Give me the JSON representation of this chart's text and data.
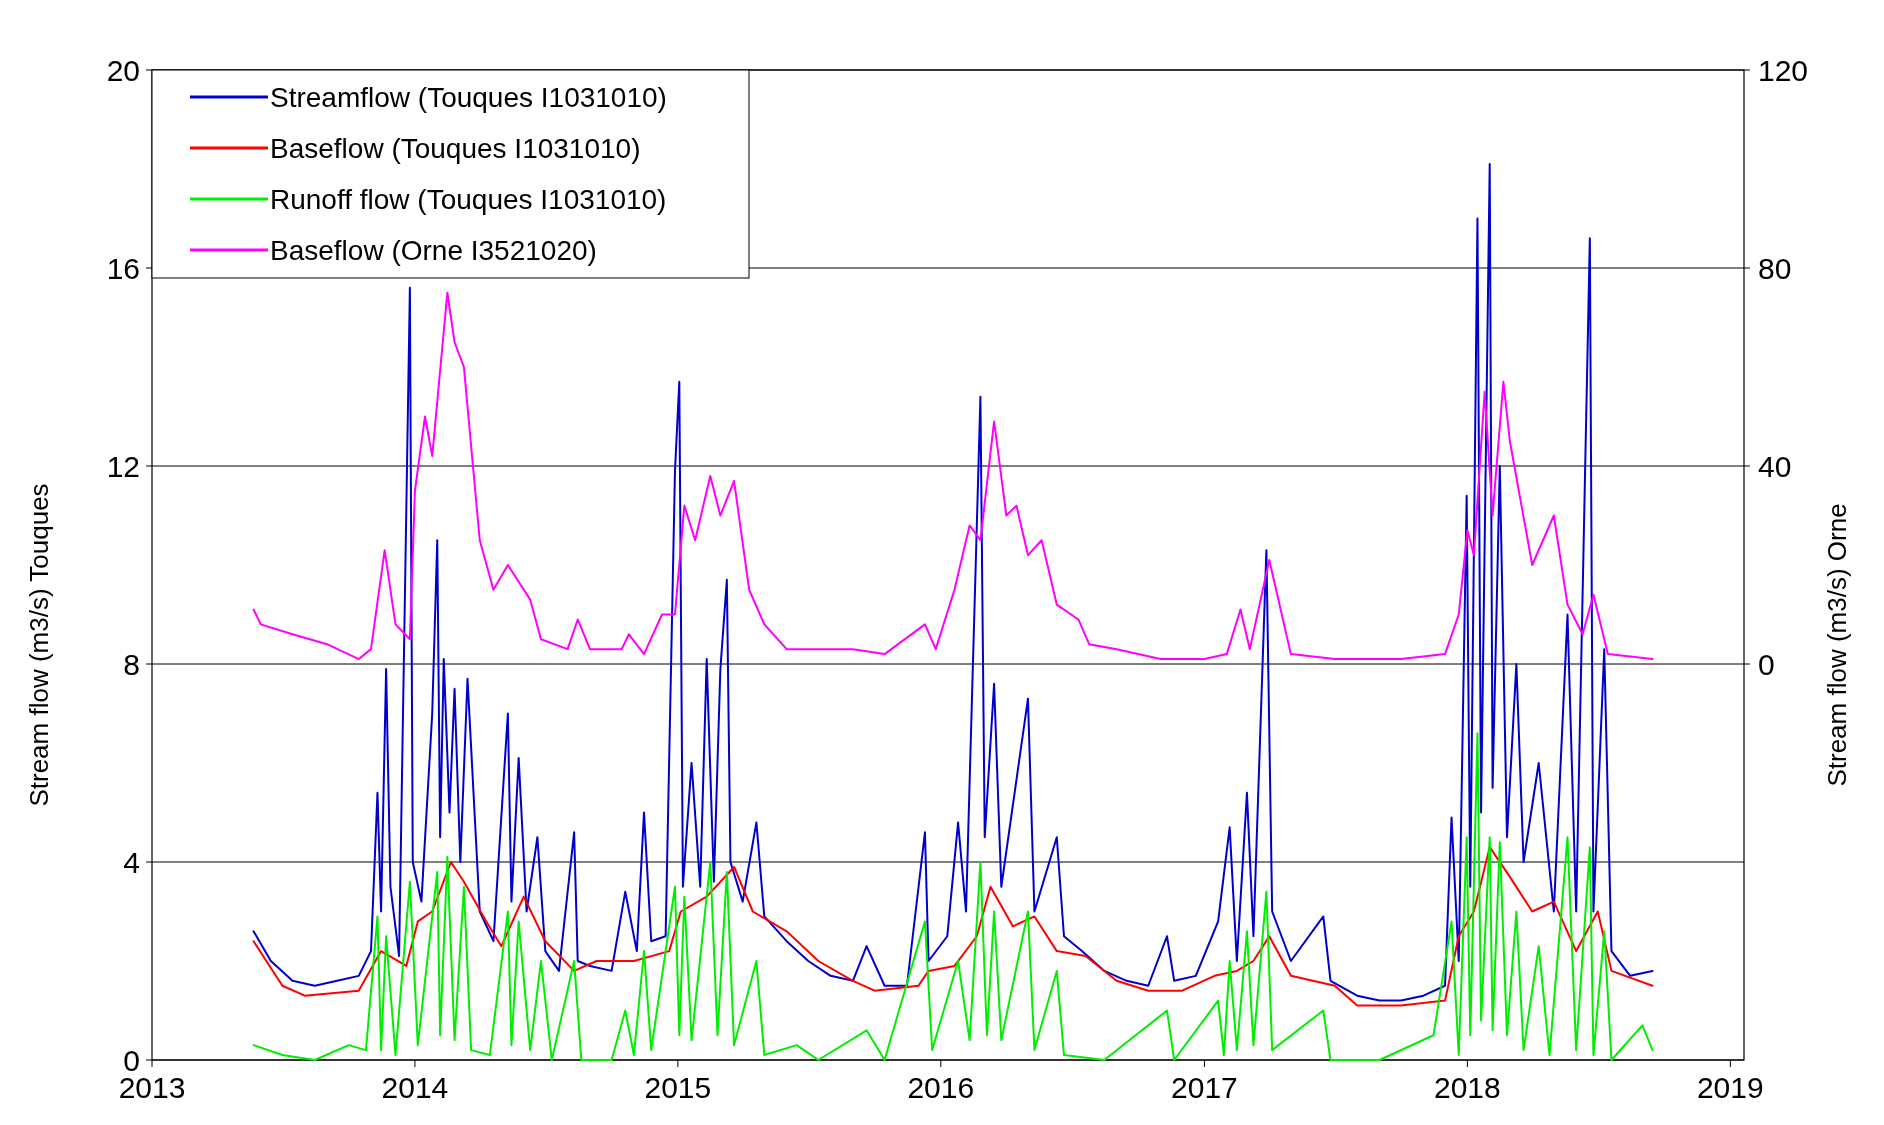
{
  "chart_data": {
    "type": "line",
    "ylabel": "Stream flow (m3/s) Touques",
    "y2label": "Stream flow (m3/s) Orne",
    "xlim": [
      "2013",
      "2019-01-20"
    ],
    "xticks": [
      {
        "value": "2013",
        "label": "2013"
      },
      {
        "value": "2014",
        "label": "2014"
      },
      {
        "value": "2015",
        "label": "2015"
      },
      {
        "value": "2016",
        "label": "2016"
      },
      {
        "value": "2017",
        "label": "2017"
      },
      {
        "value": "2018",
        "label": "2018"
      },
      {
        "value": "2019",
        "label": "2019"
      }
    ],
    "ylim": [
      0,
      20
    ],
    "yticks": [
      0,
      4,
      8,
      12,
      16,
      20
    ],
    "y2lim": [
      -80,
      120
    ],
    "y2ticks": [
      0,
      40,
      80,
      120
    ],
    "grid": "y",
    "legend": "top left",
    "series": [
      {
        "name": "Streamflow (Touques I1031010)",
        "color": "#0000cc",
        "x": [
          "2013-05-22",
          "2013-06-15",
          "2013-07-15",
          "2013-08-15",
          "2013-09-15",
          "2013-10-15",
          "2013-11-01",
          "2013-11-10",
          "2013-11-15",
          "2013-11-22",
          "2013-11-28",
          "2013-12-10",
          "2013-12-25",
          "2013-12-29",
          "2014-01-10",
          "2014-01-25",
          "2014-02-01",
          "2014-02-05",
          "2014-02-10",
          "2014-02-18",
          "2014-02-25",
          "2014-03-05",
          "2014-03-15",
          "2014-04-01",
          "2014-04-20",
          "2014-05-10",
          "2014-05-15",
          "2014-05-25",
          "2014-06-05",
          "2014-06-20",
          "2014-07-01",
          "2014-07-20",
          "2014-08-10",
          "2014-08-15",
          "2014-09-01",
          "2014-10-01",
          "2014-10-20",
          "2014-11-05",
          "2014-11-15",
          "2014-11-25",
          "2014-12-15",
          "2014-12-28",
          "2015-01-03",
          "2015-01-08",
          "2015-01-20",
          "2015-02-01",
          "2015-02-10",
          "2015-02-20",
          "2015-03-01",
          "2015-03-10",
          "2015-03-15",
          "2015-04-01",
          "2015-04-20",
          "2015-05-01",
          "2015-06-01",
          "2015-07-01",
          "2015-08-01",
          "2015-09-01",
          "2015-09-20",
          "2015-10-15",
          "2015-11-15",
          "2015-12-10",
          "2015-12-15",
          "2016-01-10",
          "2016-01-25",
          "2016-02-05",
          "2016-02-25",
          "2016-03-02",
          "2016-03-15",
          "2016-03-25",
          "2016-05-01",
          "2016-05-10",
          "2016-06-10",
          "2016-06-20",
          "2016-07-15",
          "2016-08-15",
          "2016-09-15",
          "2016-10-15",
          "2016-11-10",
          "2016-11-20",
          "2016-12-20",
          "2017-01-20",
          "2017-02-05",
          "2017-02-15",
          "2017-03-01",
          "2017-03-10",
          "2017-03-28",
          "2017-04-05",
          "2017-05-01",
          "2017-06-15",
          "2017-06-25",
          "2017-08-01",
          "2017-09-01",
          "2017-10-01",
          "2017-11-01",
          "2017-12-01",
          "2017-12-10",
          "2017-12-20",
          "2017-12-31",
          "2018-01-05",
          "2018-01-15",
          "2018-01-20",
          "2018-02-01",
          "2018-02-05",
          "2018-02-15",
          "2018-02-25",
          "2018-03-10",
          "2018-03-20",
          "2018-04-10",
          "2018-05-01",
          "2018-05-20",
          "2018-06-01",
          "2018-06-20",
          "2018-06-25",
          "2018-07-10",
          "2018-07-20",
          "2018-08-15",
          "2018-09-15"
        ],
        "values": [
          2.6,
          2.0,
          1.6,
          1.5,
          1.6,
          1.7,
          2.2,
          5.4,
          3.0,
          7.9,
          3.5,
          2.1,
          15.6,
          4.0,
          3.2,
          7.0,
          10.5,
          4.5,
          8.1,
          5.0,
          7.5,
          4.0,
          7.7,
          3.0,
          2.4,
          7.0,
          3.2,
          6.1,
          3.0,
          4.5,
          2.2,
          1.8,
          4.6,
          2.0,
          1.9,
          1.8,
          3.4,
          2.2,
          5.0,
          2.4,
          2.5,
          11.9,
          13.7,
          3.5,
          6.0,
          3.5,
          8.1,
          3.6,
          7.9,
          9.7,
          4.0,
          3.2,
          4.8,
          2.9,
          2.4,
          2.0,
          1.7,
          1.6,
          2.3,
          1.5,
          1.5,
          4.6,
          2.0,
          2.5,
          4.8,
          3.0,
          13.4,
          4.5,
          7.6,
          3.5,
          7.3,
          3.0,
          4.5,
          2.5,
          2.2,
          1.8,
          1.6,
          1.5,
          2.5,
          1.6,
          1.7,
          2.8,
          4.7,
          2.0,
          5.4,
          2.5,
          10.3,
          3.0,
          2.0,
          2.9,
          1.6,
          1.3,
          1.2,
          1.2,
          1.3,
          1.5,
          4.9,
          2.0,
          11.4,
          3.5,
          17.0,
          5.0,
          18.1,
          5.5,
          12.0,
          4.5,
          8.0,
          4.0,
          6.0,
          3.0,
          9.0,
          3.0,
          16.6,
          3.0,
          8.3,
          2.2,
          1.7,
          1.8
        ]
      },
      {
        "name": "Baseflow (Touques I1031010)",
        "color": "#ff0000",
        "x": [
          "2013-05-22",
          "2013-07-01",
          "2013-08-01",
          "2013-10-15",
          "2013-11-15",
          "2013-12-20",
          "2014-01-05",
          "2014-01-25",
          "2014-02-20",
          "2014-03-10",
          "2014-04-10",
          "2014-05-01",
          "2014-06-01",
          "2014-07-01",
          "2014-08-10",
          "2014-09-10",
          "2014-11-01",
          "2014-12-20",
          "2015-01-05",
          "2015-02-10",
          "2015-03-20",
          "2015-04-15",
          "2015-06-01",
          "2015-07-15",
          "2015-09-01",
          "2015-10-01",
          "2015-12-01",
          "2015-12-15",
          "2016-01-20",
          "2016-02-20",
          "2016-03-10",
          "2016-04-10",
          "2016-05-10",
          "2016-06-10",
          "2016-07-20",
          "2016-09-01",
          "2016-10-15",
          "2016-12-01",
          "2017-01-15",
          "2017-02-15",
          "2017-03-10",
          "2017-04-01",
          "2017-05-01",
          "2017-07-01",
          "2017-08-01",
          "2017-10-01",
          "2017-12-01",
          "2017-12-20",
          "2018-01-10",
          "2018-02-01",
          "2018-03-01",
          "2018-04-01",
          "2018-05-01",
          "2018-06-01",
          "2018-07-01",
          "2018-07-20",
          "2018-09-15"
        ],
        "values": [
          2.4,
          1.5,
          1.3,
          1.4,
          2.2,
          1.9,
          2.8,
          3.0,
          4.0,
          3.6,
          2.8,
          2.3,
          3.3,
          2.4,
          1.8,
          2.0,
          2.0,
          2.2,
          3.0,
          3.3,
          3.9,
          3.0,
          2.6,
          2.0,
          1.6,
          1.4,
          1.5,
          1.8,
          1.9,
          2.5,
          3.5,
          2.7,
          2.9,
          2.2,
          2.1,
          1.6,
          1.4,
          1.4,
          1.7,
          1.8,
          2.0,
          2.5,
          1.7,
          1.5,
          1.1,
          1.1,
          1.2,
          2.5,
          3.0,
          4.3,
          3.7,
          3.0,
          3.2,
          2.2,
          3.0,
          1.8,
          1.5
        ]
      },
      {
        "name": "Runoff flow (Touques I1031010)",
        "color": "#00ee00",
        "x": [
          "2013-05-22",
          "2013-07-01",
          "2013-08-15",
          "2013-10-01",
          "2013-10-25",
          "2013-11-10",
          "2013-11-15",
          "2013-11-22",
          "2013-12-05",
          "2013-12-25",
          "2014-01-05",
          "2014-02-01",
          "2014-02-05",
          "2014-02-15",
          "2014-02-25",
          "2014-03-10",
          "2014-03-20",
          "2014-04-15",
          "2014-05-10",
          "2014-05-15",
          "2014-05-25",
          "2014-06-10",
          "2014-06-25",
          "2014-07-10",
          "2014-08-10",
          "2014-08-20",
          "2014-10-01",
          "2014-10-20",
          "2014-11-01",
          "2014-11-15",
          "2014-11-25",
          "2014-12-28",
          "2015-01-03",
          "2015-01-10",
          "2015-01-20",
          "2015-02-15",
          "2015-02-25",
          "2015-03-10",
          "2015-03-20",
          "2015-04-20",
          "2015-05-01",
          "2015-06-15",
          "2015-07-15",
          "2015-09-20",
          "2015-10-15",
          "2015-12-10",
          "2015-12-20",
          "2016-01-25",
          "2016-02-10",
          "2016-02-25",
          "2016-03-05",
          "2016-03-15",
          "2016-03-25",
          "2016-05-01",
          "2016-05-10",
          "2016-06-10",
          "2016-06-20",
          "2016-08-15",
          "2016-11-10",
          "2016-11-20",
          "2017-01-20",
          "2017-01-28",
          "2017-02-05",
          "2017-02-15",
          "2017-03-01",
          "2017-03-10",
          "2017-03-28",
          "2017-04-05",
          "2017-06-15",
          "2017-06-25",
          "2017-09-01",
          "2017-11-15",
          "2017-12-10",
          "2017-12-20",
          "2017-12-31",
          "2018-01-05",
          "2018-01-15",
          "2018-01-20",
          "2018-02-01",
          "2018-02-05",
          "2018-02-15",
          "2018-02-25",
          "2018-03-10",
          "2018-03-20",
          "2018-04-10",
          "2018-04-25",
          "2018-05-20",
          "2018-06-01",
          "2018-06-20",
          "2018-06-25",
          "2018-07-10",
          "2018-07-20",
          "2018-09-01",
          "2018-09-15"
        ],
        "values": [
          0.3,
          0.1,
          0.0,
          0.3,
          0.2,
          2.9,
          0.2,
          2.5,
          0.1,
          3.6,
          0.3,
          3.8,
          0.5,
          4.1,
          0.4,
          3.5,
          0.2,
          0.1,
          3.0,
          0.3,
          2.8,
          0.2,
          2.0,
          0.0,
          2.0,
          0.0,
          0.0,
          1.0,
          0.1,
          2.2,
          0.2,
          3.5,
          0.5,
          3.3,
          0.4,
          4.0,
          0.5,
          3.8,
          0.3,
          2.0,
          0.1,
          0.3,
          0.0,
          0.6,
          0.0,
          2.8,
          0.2,
          2.0,
          0.4,
          4.0,
          0.5,
          3.0,
          0.4,
          3.0,
          0.2,
          1.8,
          0.1,
          0.0,
          1.0,
          0.0,
          1.2,
          0.1,
          2.0,
          0.2,
          2.6,
          0.3,
          3.4,
          0.2,
          1.0,
          0.0,
          0.0,
          0.5,
          2.8,
          0.1,
          4.5,
          0.5,
          6.6,
          0.8,
          4.5,
          0.6,
          4.4,
          0.5,
          3.0,
          0.2,
          2.3,
          0.1,
          4.5,
          0.2,
          4.3,
          0.1,
          2.6,
          0.0,
          0.7,
          0.2
        ]
      },
      {
        "name": "Baseflow (Orne I3521020)",
        "color": "#ff00ff",
        "axis": "y2",
        "x": [
          "2013-05-22",
          "2013-06-01",
          "2013-07-15",
          "2013-09-01",
          "2013-10-15",
          "2013-11-01",
          "2013-11-20",
          "2013-12-05",
          "2013-12-25",
          "2014-01-01",
          "2014-01-15",
          "2014-01-25",
          "2014-02-15",
          "2014-02-25",
          "2014-03-10",
          "2014-04-01",
          "2014-04-20",
          "2014-05-10",
          "2014-06-10",
          "2014-06-25",
          "2014-08-01",
          "2014-08-15",
          "2014-09-01",
          "2014-10-15",
          "2014-10-25",
          "2014-11-15",
          "2014-12-10",
          "2014-12-28",
          "2015-01-10",
          "2015-01-25",
          "2015-02-15",
          "2015-03-01",
          "2015-03-20",
          "2015-04-10",
          "2015-05-01",
          "2015-06-01",
          "2015-09-01",
          "2015-10-15",
          "2015-12-10",
          "2015-12-25",
          "2016-01-20",
          "2016-02-10",
          "2016-02-25",
          "2016-03-15",
          "2016-04-01",
          "2016-04-15",
          "2016-05-01",
          "2016-05-20",
          "2016-06-10",
          "2016-07-10",
          "2016-07-25",
          "2016-09-01",
          "2016-11-01",
          "2017-01-01",
          "2017-02-01",
          "2017-02-20",
          "2017-03-05",
          "2017-04-01",
          "2017-05-01",
          "2017-07-01",
          "2017-10-01",
          "2017-12-01",
          "2017-12-20",
          "2018-01-01",
          "2018-01-10",
          "2018-01-25",
          "2018-02-05",
          "2018-02-20",
          "2018-03-01",
          "2018-04-01",
          "2018-05-01",
          "2018-05-20",
          "2018-06-10",
          "2018-06-25",
          "2018-07-15",
          "2018-09-15"
        ],
        "values": [
          11,
          8,
          6,
          4,
          1,
          3,
          23,
          8,
          5,
          35,
          50,
          42,
          75,
          65,
          60,
          25,
          15,
          20,
          13,
          5,
          3,
          9,
          3,
          3,
          6,
          2,
          10,
          10,
          32,
          25,
          38,
          30,
          37,
          15,
          8,
          3,
          3,
          2,
          8,
          3,
          15,
          28,
          25,
          49,
          30,
          32,
          22,
          25,
          12,
          9,
          4,
          3,
          1,
          1,
          2,
          11,
          3,
          21,
          2,
          1,
          1,
          2,
          10,
          27,
          22,
          55,
          30,
          57,
          45,
          20,
          30,
          12,
          6,
          14,
          2,
          1
        ]
      }
    ]
  }
}
